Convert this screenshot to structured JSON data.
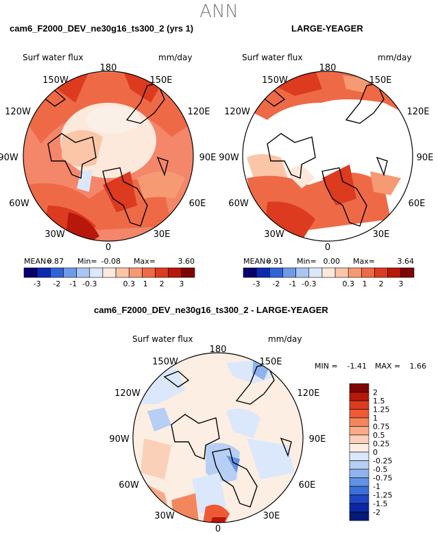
{
  "page": {
    "title": "ANN"
  },
  "panels": [
    {
      "title": "cam6_F2000_DEV_ne30g16_ts300_2 (yrs 1)",
      "variable": "Surf water flux",
      "units": "mm/day",
      "stats": {
        "mean_label": "MEAN=",
        "mean": "0.87",
        "min_label": "Min=",
        "min": "-0.08",
        "max_label": "Max=",
        "max": "3.60"
      }
    },
    {
      "title": "LARGE-YEAGER",
      "variable": "Surf water flux",
      "units": "mm/day",
      "stats": {
        "mean_label": "MEAN=",
        "mean": "0.91",
        "min_label": "Min=",
        "min": "0.00",
        "max_label": "Max=",
        "max": "3.64"
      }
    },
    {
      "title": "cam6_F2000_DEV_ne30g16_ts300_2 - LARGE-YEAGER",
      "variable": "Surf water flux",
      "units": "mm/day",
      "stats": {
        "min_label": "MIN =",
        "min": "-1.41",
        "max_label": "MAX =",
        "max": "1.66"
      }
    }
  ],
  "longitude_labels": [
    "180",
    "150E",
    "120E",
    "90E",
    "60E",
    "30E",
    "0",
    "30W",
    "60W",
    "90W",
    "120W",
    "150W"
  ],
  "colorbar_horizontal": {
    "labels": [
      "-3",
      "-2",
      "-1",
      "-0.3",
      "0.3",
      "1",
      "2",
      "3"
    ],
    "colors": [
      "#08006b",
      "#0a2bb0",
      "#2f63d8",
      "#6f9ae8",
      "#a9c6f2",
      "#dbe8fb",
      "#fde8dc",
      "#fbc5a8",
      "#f59a73",
      "#ee6a46",
      "#dc3b1f",
      "#b8170b",
      "#7e0505"
    ]
  },
  "colorbar_vertical": {
    "labels": [
      "2",
      "1.5",
      "1.25",
      "1",
      "0.75",
      "0.5",
      "0.25",
      "0",
      "-0.25",
      "-0.5",
      "-0.75",
      "-1",
      "-1.25",
      "-1.5",
      "-2"
    ],
    "colors": [
      "#7e0505",
      "#b8170b",
      "#dc3b1f",
      "#ee5a36",
      "#f4865e",
      "#f8ab88",
      "#fbd0b8",
      "#fdeee3",
      "#dbe8fb",
      "#b7cff5",
      "#8fb3ee",
      "#6392e4",
      "#3b6fd9",
      "#1f46c4",
      "#0c27a3",
      "#061a7a"
    ]
  }
}
